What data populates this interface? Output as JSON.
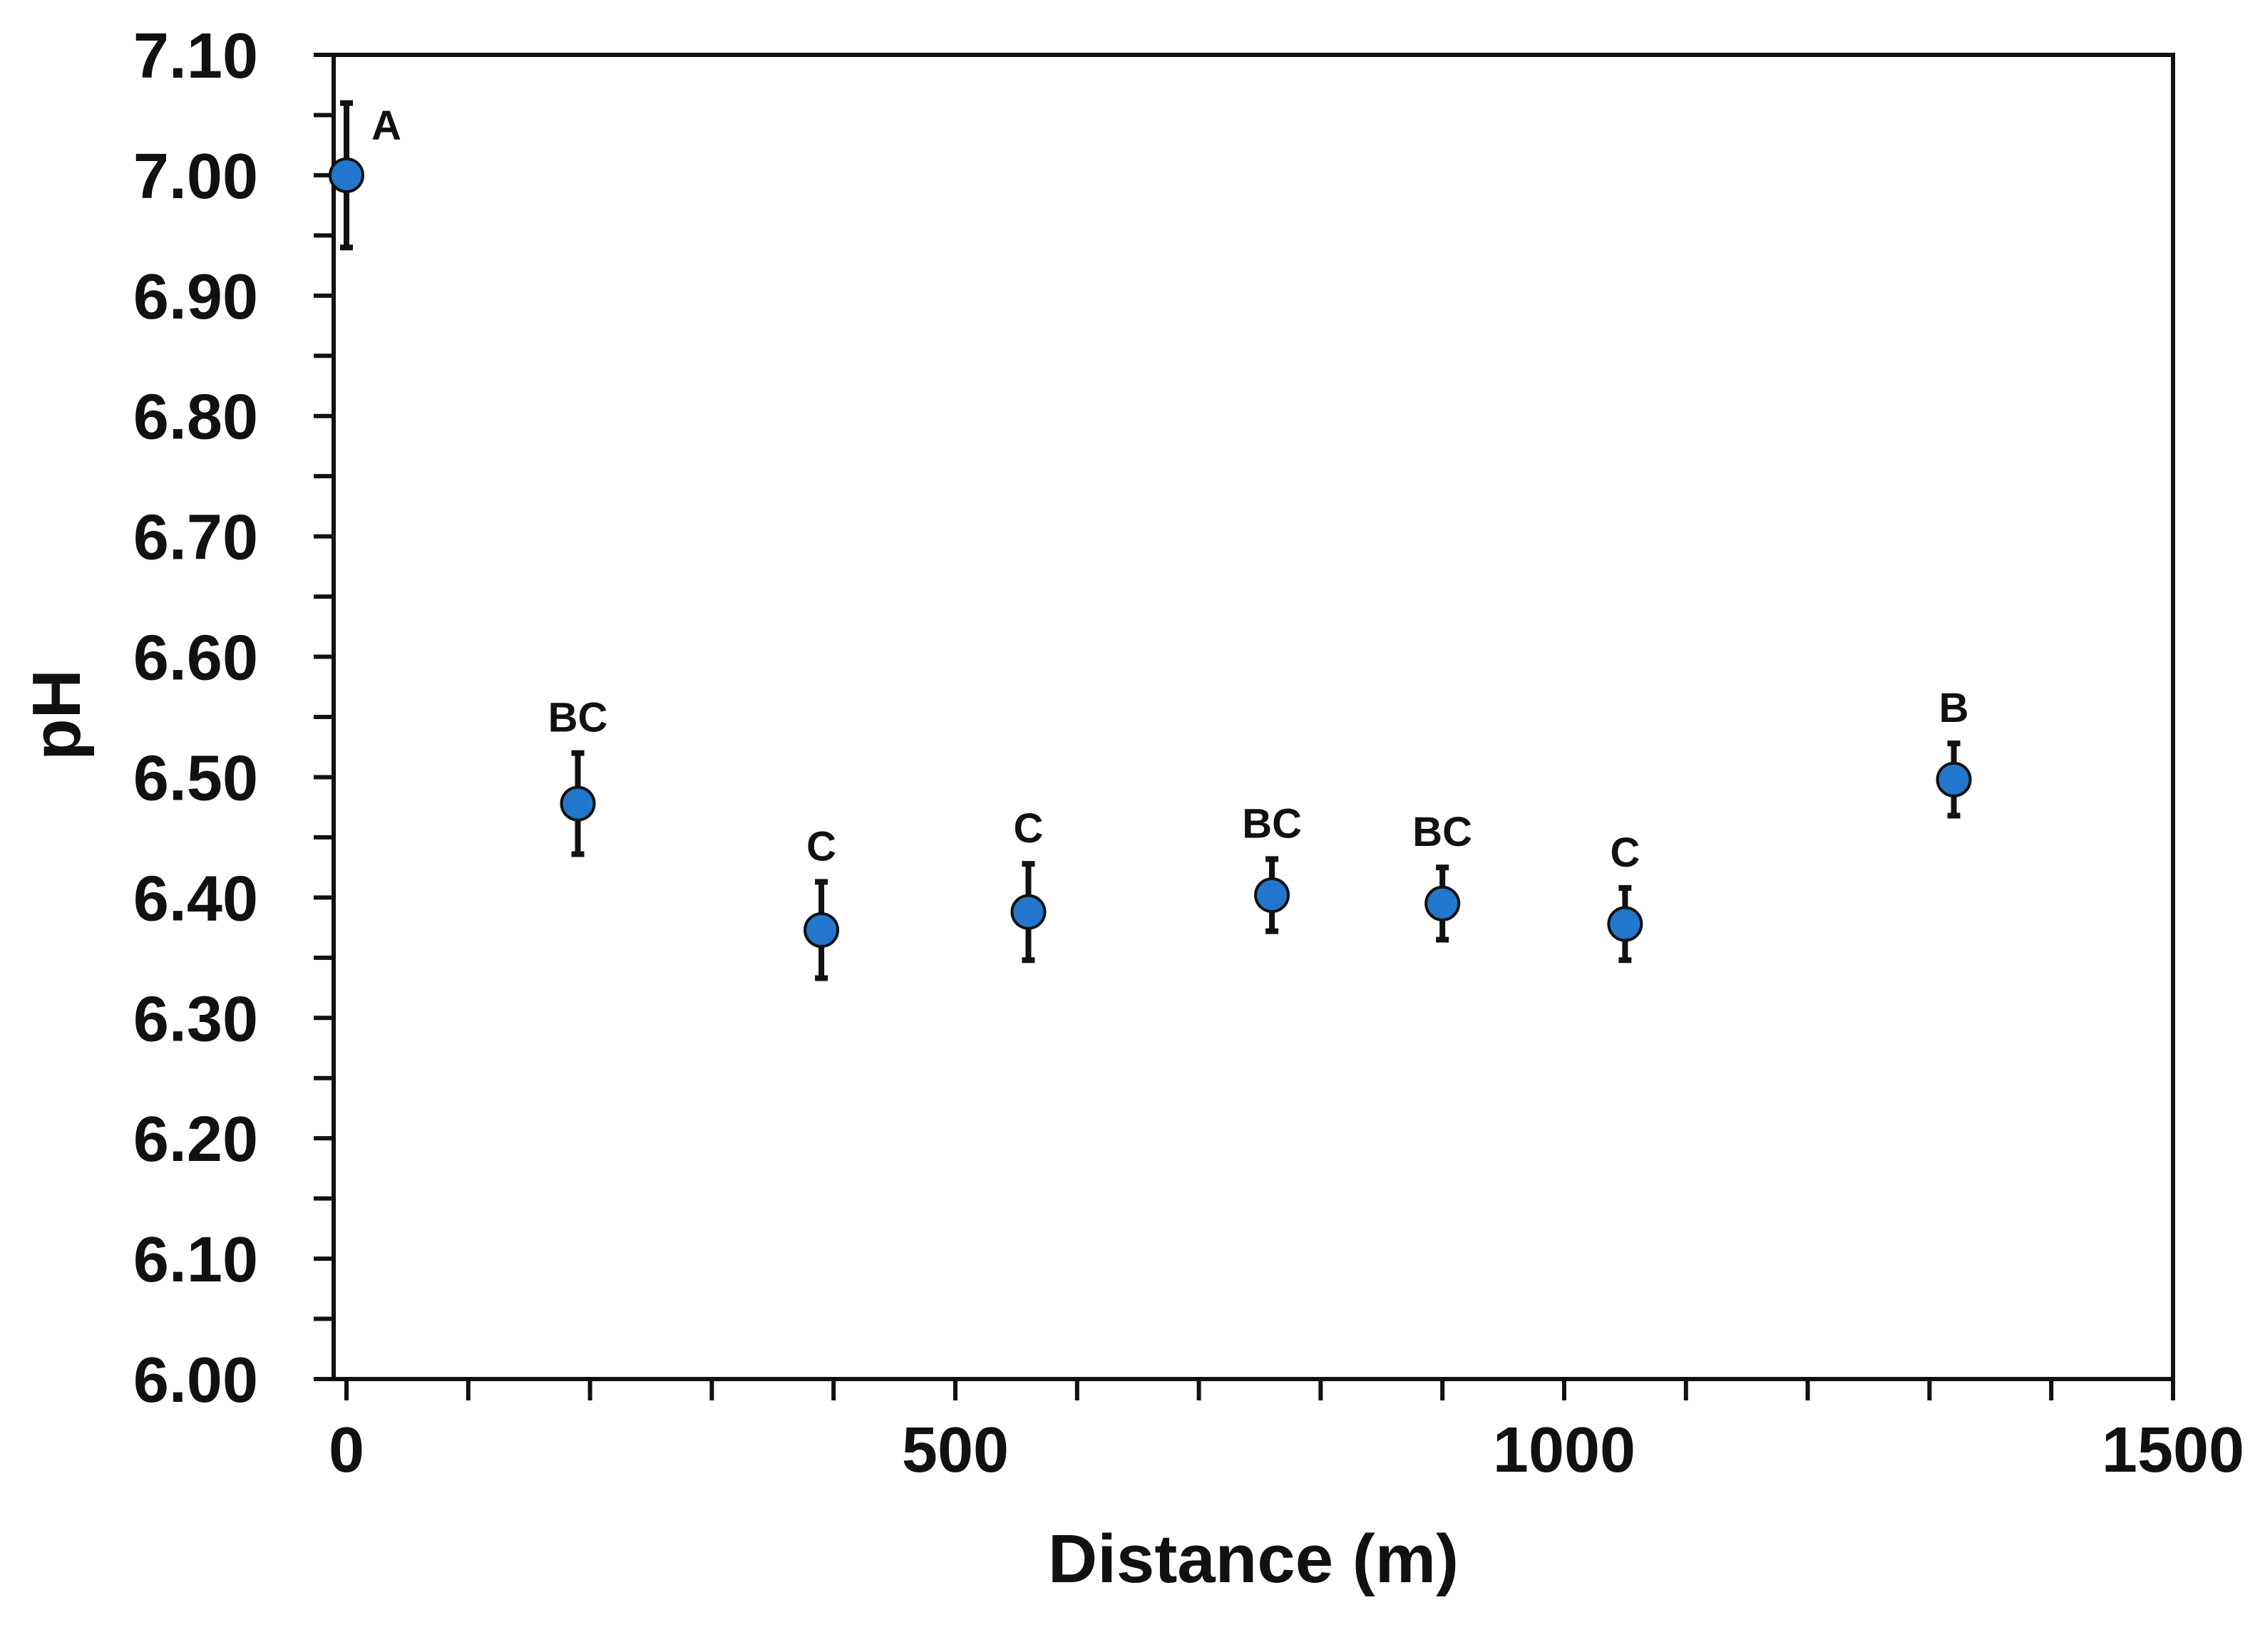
{
  "chart_data": {
    "type": "scatter",
    "title": "",
    "xlabel": "Distance  (m)",
    "ylabel": "pH",
    "xlim": [
      0,
      1500
    ],
    "ylim": [
      6.0,
      7.1
    ],
    "x_ticks": [
      0,
      500,
      1000,
      1500
    ],
    "x_tick_labels": [
      "0",
      "500",
      "1000",
      "1500"
    ],
    "y_ticks": [
      6.0,
      6.1,
      6.2,
      6.3,
      6.4,
      6.5,
      6.6,
      6.7,
      6.8,
      6.9,
      7.0,
      7.1
    ],
    "y_tick_labels": [
      "6.00",
      "6.10",
      "6.20",
      "6.30",
      "6.40",
      "6.50",
      "6.60",
      "6.70",
      "6.80",
      "6.90",
      "7.00",
      "7.10"
    ],
    "grid": false,
    "marker_color": "#2277cc",
    "points": [
      {
        "x": 0,
        "y": 7.0,
        "err": 0.06,
        "label": "A"
      },
      {
        "x": 190,
        "y": 6.478,
        "err": 0.042,
        "label": "BC"
      },
      {
        "x": 390,
        "y": 6.373,
        "err": 0.04,
        "label": "C"
      },
      {
        "x": 560,
        "y": 6.388,
        "err": 0.04,
        "label": "C"
      },
      {
        "x": 760,
        "y": 6.402,
        "err": 0.03,
        "label": "BC"
      },
      {
        "x": 900,
        "y": 6.395,
        "err": 0.03,
        "label": "BC"
      },
      {
        "x": 1050,
        "y": 6.378,
        "err": 0.03,
        "label": "C"
      },
      {
        "x": 1320,
        "y": 6.498,
        "err": 0.03,
        "label": "B"
      }
    ]
  }
}
